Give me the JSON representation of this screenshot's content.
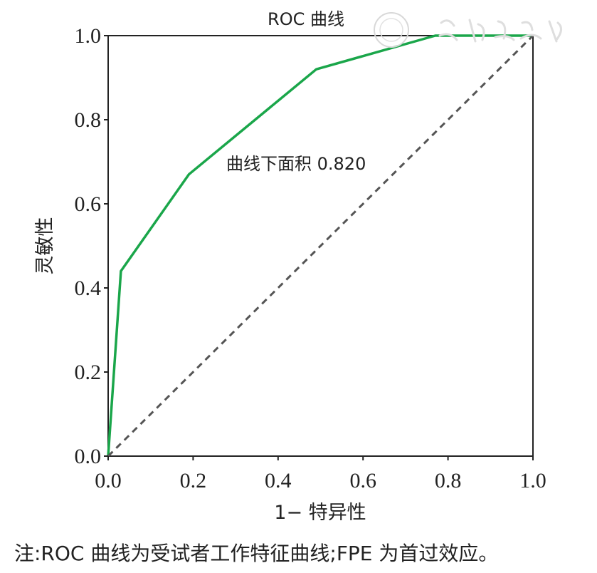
{
  "chart_data": {
    "type": "line",
    "title": "ROC 曲线",
    "xlabel": "1− 特异性",
    "ylabel": "灵敏性",
    "xlim": [
      0,
      1
    ],
    "ylim": [
      0,
      1
    ],
    "xticks": [
      "0.0",
      "0.2",
      "0.4",
      "0.6",
      "0.8",
      "1.0"
    ],
    "yticks": [
      "0.0",
      "0.2",
      "0.4",
      "0.6",
      "0.8",
      "1.0"
    ],
    "grid": false,
    "series": [
      {
        "color": "#1aa64a",
        "x": [
          0,
          0.03,
          0.19,
          0.49,
          0.77,
          1.0
        ],
        "y": [
          0,
          0.44,
          0.67,
          0.92,
          1.0,
          1.0
        ]
      },
      {
        "color": "#555555",
        "style": "dashed",
        "x": [
          0,
          1
        ],
        "y": [
          0,
          1
        ]
      }
    ],
    "annotation": "曲线下面积 0.820"
  },
  "note": "注:ROC 曲线为受试者工作特征曲线;FPE 为首过效应。"
}
